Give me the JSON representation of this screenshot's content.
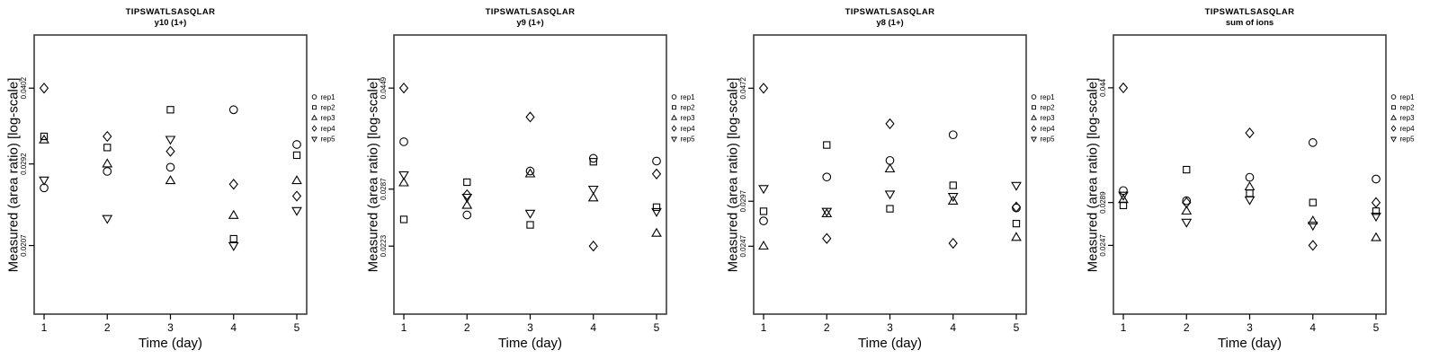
{
  "figure": {
    "xlabel": "Time (day)",
    "ylabel": "Measured (area ratio) [log-scale]",
    "colors": {
      "marker": "#000000",
      "frame": "#3c3c3c",
      "tick": "#000000",
      "text": "#000000",
      "background": "#ffffff"
    },
    "legend": {
      "position": "right",
      "items": [
        {
          "label": "rep1",
          "marker": "circle"
        },
        {
          "label": "rep2",
          "marker": "square"
        },
        {
          "label": "rep3",
          "marker": "triangle-up"
        },
        {
          "label": "rep4",
          "marker": "diamond"
        },
        {
          "label": "rep5",
          "marker": "triangle-down"
        }
      ]
    }
  },
  "chart_data": [
    {
      "type": "scatter",
      "title": "TIPSWATLSASQLAR",
      "subtitle": "y10 (1+)",
      "xlabel": "Time (day)",
      "ylabel": "Measured (area ratio) [log-scale]",
      "x": [
        1,
        2,
        3,
        4,
        5
      ],
      "xtick_labels": [
        "1",
        "2",
        "3",
        "4",
        "5"
      ],
      "yscale": "log",
      "ylim": [
        0.0155,
        0.0503
      ],
      "yticks": [
        0.0207,
        0.0292,
        0.0402
      ],
      "ytick_labels": [
        "0.0207",
        "0.0292",
        "0.0402"
      ],
      "grid": false,
      "legend_position": "right",
      "series": [
        {
          "name": "rep1",
          "marker": "circle",
          "values": [
            0.0264,
            0.0283,
            0.0288,
            0.0367,
            0.0317
          ]
        },
        {
          "name": "rep2",
          "marker": "square",
          "values": [
            0.0328,
            0.0313,
            0.0367,
            0.0213,
            0.0303
          ]
        },
        {
          "name": "rep3",
          "marker": "triangle-up",
          "values": [
            0.0323,
            0.0292,
            0.0272,
            0.0235,
            0.0272
          ]
        },
        {
          "name": "rep4",
          "marker": "diamond",
          "values": [
            0.0402,
            0.0328,
            0.0308,
            0.0268,
            0.0255
          ]
        },
        {
          "name": "rep5",
          "marker": "triangle-down",
          "values": [
            0.0273,
            0.0232,
            0.0324,
            0.0207,
            0.024
          ]
        }
      ]
    },
    {
      "type": "scatter",
      "title": "TIPSWATLSASQLAR",
      "subtitle": "y9 (1+)",
      "xlabel": "Time (day)",
      "ylabel": "Measured (area ratio) [log-scale]",
      "x": [
        1,
        2,
        3,
        4,
        5
      ],
      "xtick_labels": [
        "1",
        "2",
        "3",
        "4",
        "5"
      ],
      "yscale": "log",
      "ylim": [
        0.0165,
        0.0568
      ],
      "yticks": [
        0.0223,
        0.0287,
        0.0449
      ],
      "ytick_labels": [
        "0.0223",
        "0.0287",
        "0.0449"
      ],
      "grid": false,
      "legend_position": "right",
      "series": [
        {
          "name": "rep1",
          "marker": "circle",
          "values": [
            0.0354,
            0.0256,
            0.0311,
            0.0329,
            0.0325
          ]
        },
        {
          "name": "rep2",
          "marker": "square",
          "values": [
            0.0251,
            0.0296,
            0.0245,
            0.0324,
            0.0265
          ]
        },
        {
          "name": "rep3",
          "marker": "triangle-up",
          "values": [
            0.0295,
            0.0267,
            0.0307,
            0.0276,
            0.0236
          ]
        },
        {
          "name": "rep4",
          "marker": "diamond",
          "values": [
            0.0449,
            0.028,
            0.0395,
            0.0223,
            0.0307
          ]
        },
        {
          "name": "rep5",
          "marker": "triangle-down",
          "values": [
            0.0306,
            0.0277,
            0.0258,
            0.0287,
            0.026
          ]
        }
      ]
    },
    {
      "type": "scatter",
      "title": "TIPSWATLSASQLAR",
      "subtitle": "y8 (1+)",
      "xlabel": "Time (day)",
      "ylabel": "Measured (area ratio) [log-scale]",
      "x": [
        1,
        2,
        3,
        4,
        5
      ],
      "xtick_labels": [
        "1",
        "2",
        "3",
        "4",
        "5"
      ],
      "yscale": "log",
      "ylim": [
        0.0187,
        0.0587
      ],
      "yticks": [
        0.0247,
        0.0297,
        0.0472
      ],
      "ytick_labels": [
        "0.0247",
        "0.0297",
        "0.0472"
      ],
      "grid": false,
      "legend_position": "right",
      "series": [
        {
          "name": "rep1",
          "marker": "circle",
          "values": [
            0.0274,
            0.0328,
            0.0351,
            0.039,
            0.0289
          ]
        },
        {
          "name": "rep2",
          "marker": "square",
          "values": [
            0.0285,
            0.0374,
            0.0288,
            0.0317,
            0.0271
          ]
        },
        {
          "name": "rep3",
          "marker": "triangle-up",
          "values": [
            0.0247,
            0.0282,
            0.0339,
            0.0297,
            0.0256
          ]
        },
        {
          "name": "rep4",
          "marker": "diamond",
          "values": [
            0.0472,
            0.0255,
            0.0408,
            0.025,
            0.029
          ]
        },
        {
          "name": "rep5",
          "marker": "triangle-down",
          "values": [
            0.0313,
            0.0285,
            0.0306,
            0.0303,
            0.0317
          ]
        }
      ]
    },
    {
      "type": "scatter",
      "title": "TIPSWATLSASQLAR",
      "subtitle": "sum of ions",
      "xlabel": "Time (day)",
      "ylabel": "Measured (area ratio) [log-scale]",
      "x": [
        1,
        2,
        3,
        4,
        5
      ],
      "xtick_labels": [
        "1",
        "2",
        "3",
        "4",
        "5"
      ],
      "yscale": "log",
      "ylim": [
        0.0192,
        0.0534
      ],
      "yticks": [
        0.0247,
        0.0289,
        0.044
      ],
      "ytick_labels": [
        "0.0247",
        "0.0289",
        "0.044"
      ],
      "grid": false,
      "legend_position": "right",
      "series": [
        {
          "name": "rep1",
          "marker": "circle",
          "values": [
            0.0302,
            0.0291,
            0.0317,
            0.036,
            0.0315
          ]
        },
        {
          "name": "rep2",
          "marker": "square",
          "values": [
            0.0286,
            0.0326,
            0.0299,
            0.0289,
            0.028
          ]
        },
        {
          "name": "rep3",
          "marker": "triangle-up",
          "values": [
            0.0292,
            0.028,
            0.0306,
            0.027,
            0.0254
          ]
        },
        {
          "name": "rep4",
          "marker": "diamond",
          "values": [
            0.044,
            0.0289,
            0.0373,
            0.0247,
            0.0289
          ]
        },
        {
          "name": "rep5",
          "marker": "triangle-down",
          "values": [
            0.0297,
            0.0269,
            0.0292,
            0.0266,
            0.0275
          ]
        }
      ]
    }
  ]
}
